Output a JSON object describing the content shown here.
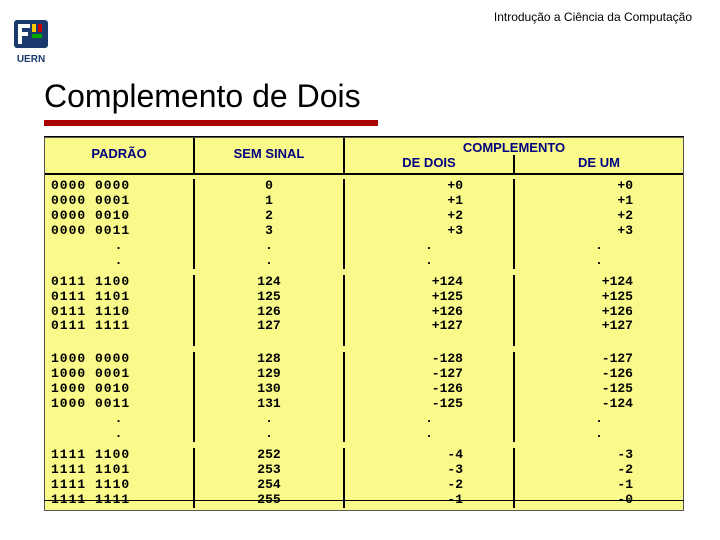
{
  "header": {
    "course_text": "Introdução a Ciência da Computação"
  },
  "logo": {
    "uern_text": "UERN",
    "shield_color": "#1a3a6e",
    "text_color": "#1a3a6e"
  },
  "title": "Complemento de Dois",
  "title_underline_color": "#a80000",
  "table": {
    "background_color": "#fafa8a",
    "header_text_color": "#000080",
    "body_font": "Courier New",
    "body_fontsize": 13,
    "columns": {
      "padrao": "PADRÃO",
      "sem_sinal": "SEM SINAL",
      "complemento": "COMPLEMENTO",
      "de_dois": "DE DOIS",
      "de_um": "DE UM"
    },
    "groups": [
      {
        "rows": [
          {
            "padrao": "0000 0000",
            "sem_sinal": "0",
            "de_dois": "+0",
            "de_um": "+0"
          },
          {
            "padrao": "0000 0001",
            "sem_sinal": "1",
            "de_dois": "+1",
            "de_um": "+1"
          },
          {
            "padrao": "0000 0010",
            "sem_sinal": "2",
            "de_dois": "+2",
            "de_um": "+2"
          },
          {
            "padrao": "0000 0011",
            "sem_sinal": "3",
            "de_dois": "+3",
            "de_um": "+3"
          }
        ],
        "dots_after": true
      },
      {
        "rows": [
          {
            "padrao": "0111 1100",
            "sem_sinal": "124",
            "de_dois": "+124",
            "de_um": "+124"
          },
          {
            "padrao": "0111 1101",
            "sem_sinal": "125",
            "de_dois": "+125",
            "de_um": "+125"
          },
          {
            "padrao": "0111 1110",
            "sem_sinal": "126",
            "de_dois": "+126",
            "de_um": "+126"
          },
          {
            "padrao": "0111 1111",
            "sem_sinal": "127",
            "de_dois": "+127",
            "de_um": "+127"
          }
        ],
        "dots_after": false,
        "gap_after": true
      },
      {
        "rows": [
          {
            "padrao": "1000 0000",
            "sem_sinal": "128",
            "de_dois": "-128",
            "de_um": "-127"
          },
          {
            "padrao": "1000 0001",
            "sem_sinal": "129",
            "de_dois": "-127",
            "de_um": "-126"
          },
          {
            "padrao": "1000 0010",
            "sem_sinal": "130",
            "de_dois": "-126",
            "de_um": "-125"
          },
          {
            "padrao": "1000 0011",
            "sem_sinal": "131",
            "de_dois": "-125",
            "de_um": "-124"
          }
        ],
        "dots_after": true
      },
      {
        "rows": [
          {
            "padrao": "1111 1100",
            "sem_sinal": "252",
            "de_dois": "-4",
            "de_um": "-3"
          },
          {
            "padrao": "1111 1101",
            "sem_sinal": "253",
            "de_dois": "-3",
            "de_um": "-2"
          },
          {
            "padrao": "1111 1110",
            "sem_sinal": "254",
            "de_dois": "-2",
            "de_um": "-1"
          },
          {
            "padrao": "1111 1111",
            "sem_sinal": "255",
            "de_dois": "-1",
            "de_um": "-0"
          }
        ],
        "dots_after": false
      }
    ],
    "dots_char": "."
  }
}
